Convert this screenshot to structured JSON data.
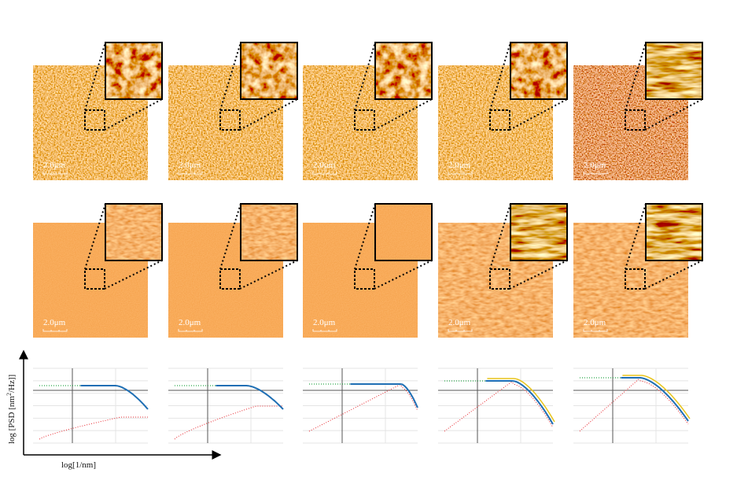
{
  "scale_bars": [
    "2.0μm",
    "2.0μm",
    "2.0μm",
    "2.0μm",
    "2.0μm",
    "2.0μm",
    "2.0μm",
    "2.0μm",
    "2.0μm",
    "2.0μm"
  ],
  "axes": {
    "y_label": "log [PSD [nm",
    "y_label_sup": "2",
    "y_label_end": "/Hz]]",
    "x_label": "log[1/nm]"
  }
}
